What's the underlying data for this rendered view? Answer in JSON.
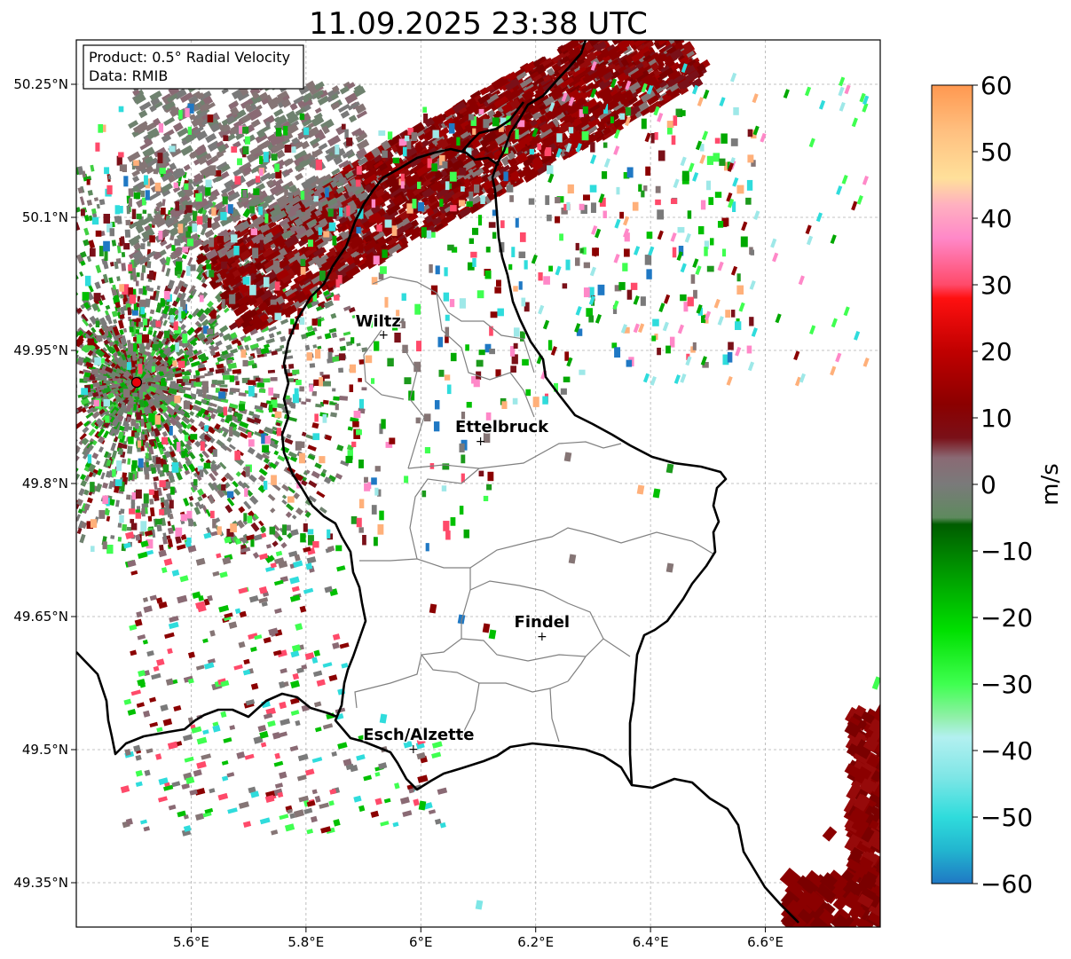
{
  "title": "11.09.2025 23:38 UTC",
  "info_box": {
    "product_line": "Product: 0.5° Radial Velocity",
    "data_line": "Data: RMIB"
  },
  "map": {
    "lon_range": [
      5.4,
      6.8
    ],
    "lat_range": [
      49.3,
      50.3
    ],
    "lon_ticks": [
      {
        "value": 5.6,
        "label": "5.6°E"
      },
      {
        "value": 5.8,
        "label": "5.8°E"
      },
      {
        "value": 6.0,
        "label": "6°E"
      },
      {
        "value": 6.2,
        "label": "6.2°E"
      },
      {
        "value": 6.4,
        "label": "6.4°E"
      },
      {
        "value": 6.6,
        "label": "6.6°E"
      }
    ],
    "lat_ticks": [
      {
        "value": 49.35,
        "label": "49.35°N"
      },
      {
        "value": 49.5,
        "label": "49.5°N"
      },
      {
        "value": 49.65,
        "label": "49.65°N"
      },
      {
        "value": 49.8,
        "label": "49.8°N"
      },
      {
        "value": 49.95,
        "label": "49.95°N"
      },
      {
        "value": 50.1,
        "label": "50.1°N"
      },
      {
        "value": 50.25,
        "label": "50.25°N"
      }
    ],
    "radar_site": {
      "name": "radar",
      "lon": 5.505,
      "lat": 49.914
    },
    "cities": [
      {
        "name": "Wiltz",
        "lon": 5.935,
        "lat": 49.967
      },
      {
        "name": "Ettelbruck",
        "lon": 6.104,
        "lat": 49.847
      },
      {
        "name": "Findel",
        "lon": 6.211,
        "lat": 49.627
      },
      {
        "name": "Esch/Alzette",
        "lon": 5.987,
        "lat": 49.5
      }
    ]
  },
  "colorbar": {
    "label": "m/s",
    "min": -60,
    "max": 60,
    "ticks": [
      "60",
      "50",
      "40",
      "30",
      "20",
      "10",
      "0",
      "−10",
      "−20",
      "−30",
      "−40",
      "−50",
      "−60"
    ],
    "stops": [
      {
        "v": -60,
        "c": "#1f78c4"
      },
      {
        "v": -55,
        "c": "#22b5cf"
      },
      {
        "v": -50,
        "c": "#2fdcdc"
      },
      {
        "v": -44,
        "c": "#7ee6e6"
      },
      {
        "v": -38,
        "c": "#b3f0f0"
      },
      {
        "v": -35,
        "c": "#90f0a8"
      },
      {
        "v": -30,
        "c": "#3fff50"
      },
      {
        "v": -22,
        "c": "#00e000"
      },
      {
        "v": -15,
        "c": "#00a800"
      },
      {
        "v": -6,
        "c": "#005c00"
      },
      {
        "v": -5,
        "c": "#5e8a5e"
      },
      {
        "v": 0,
        "c": "#7a7a7a"
      },
      {
        "v": 4,
        "c": "#8a6a74"
      },
      {
        "v": 7,
        "c": "#7a1018"
      },
      {
        "v": 12,
        "c": "#8b0000"
      },
      {
        "v": 20,
        "c": "#c00000"
      },
      {
        "v": 28,
        "c": "#ff1010"
      },
      {
        "v": 30,
        "c": "#ff4a6a"
      },
      {
        "v": 37,
        "c": "#ff88c8"
      },
      {
        "v": 42,
        "c": "#ffb0c0"
      },
      {
        "v": 46,
        "c": "#ffe09a"
      },
      {
        "v": 53,
        "c": "#ffc080"
      },
      {
        "v": 60,
        "c": "#ff9850"
      }
    ]
  }
}
